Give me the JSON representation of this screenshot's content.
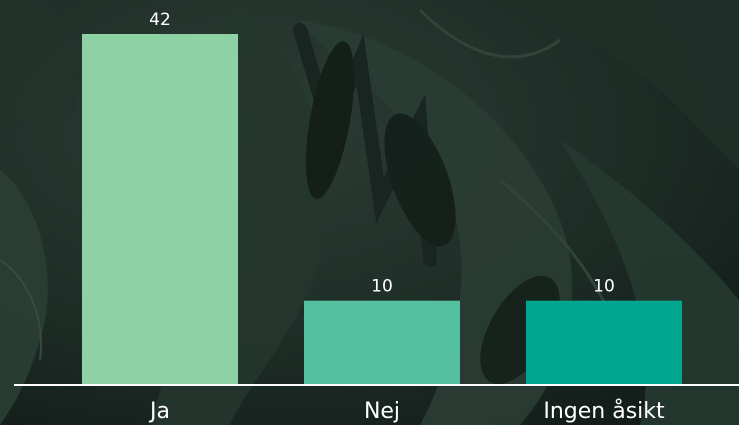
{
  "chart_data": {
    "type": "bar",
    "categories": [
      "Ja",
      "Nej",
      "Ingen åsikt"
    ],
    "values": [
      42,
      10,
      10
    ],
    "data_labels": [
      "42",
      "10",
      "10"
    ],
    "colors": [
      "#8ed1a4",
      "#55c0a0",
      "#00a690"
    ],
    "title": "",
    "xlabel": "",
    "ylabel": "",
    "ylim": [
      0,
      42
    ],
    "grid": false,
    "legend": "none",
    "label_color": "#ffffff",
    "axis_color": "#ffffff"
  }
}
